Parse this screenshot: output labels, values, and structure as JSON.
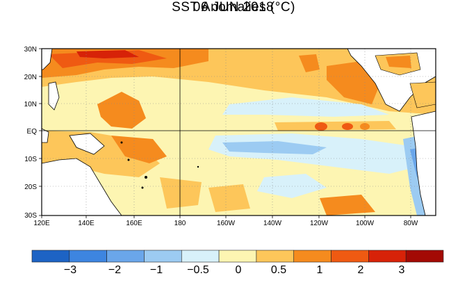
{
  "title": "SST Anomalies (°C)",
  "subtitle": "06 JUN 2018",
  "map": {
    "region": "Tropical Pacific",
    "variable": "Sea surface temperature anomaly",
    "lon_labels": [
      "120E",
      "140E",
      "160E",
      "180",
      "160W",
      "140W",
      "120W",
      "100W",
      "80W"
    ],
    "lat_labels": [
      "30N",
      "20N",
      "10N",
      "EQ",
      "10S",
      "20S",
      "30S"
    ],
    "land_color": "#ffffff",
    "reference_lines": [
      "EQ",
      "180"
    ]
  },
  "colorbar": {
    "colors": [
      "#1d63c4",
      "#3d85e0",
      "#6aa6ea",
      "#9ccbf2",
      "#d8f1fa",
      "#fdf5b2",
      "#fdc65a",
      "#f58b1e",
      "#ef5a12",
      "#d72208",
      "#a30a04"
    ],
    "labels": [
      "−3",
      "−2",
      "−1",
      "−0.5",
      "0",
      "0.5",
      "1",
      "2",
      "3"
    ]
  }
}
